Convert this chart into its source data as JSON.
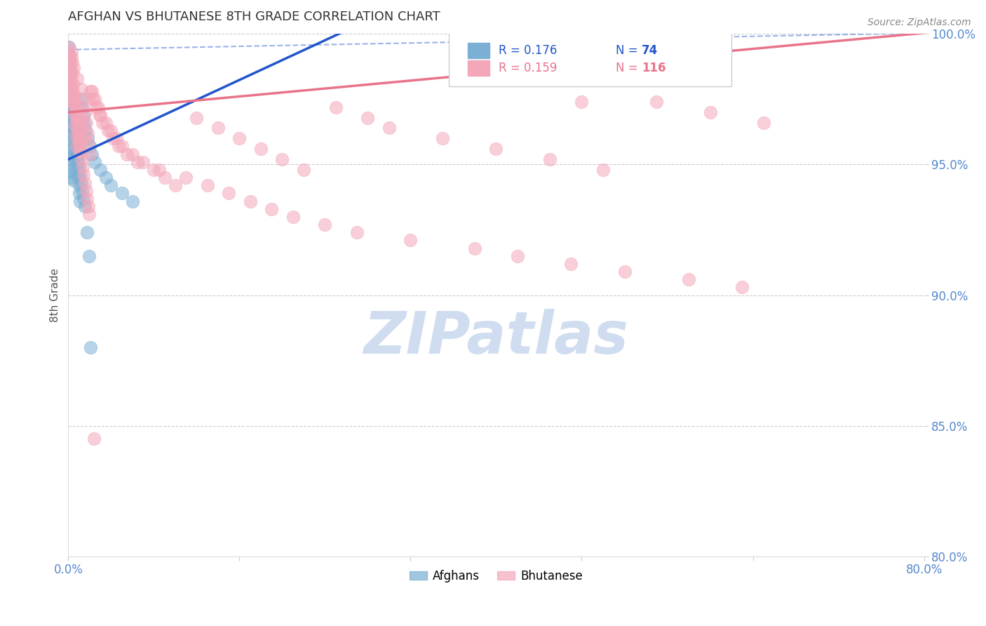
{
  "title": "AFGHAN VS BHUTANESE 8TH GRADE CORRELATION CHART",
  "source": "Source: ZipAtlas.com",
  "xlim": [
    0.0,
    80.0
  ],
  "ylim": [
    80.0,
    100.0
  ],
  "ylabel": "8th Grade",
  "afghan_color": "#7bafd4",
  "bhutanese_color": "#f4a7b9",
  "afghan_line_color": "#2255cc",
  "bhutanese_line_color": "#e8738a",
  "title_color": "#333333",
  "source_color": "#888888",
  "axis_label_color": "#555555",
  "tick_color": "#5588cc",
  "grid_color": "#cccccc",
  "watermark_color": "#d0ddf0",
  "afghan_slope": 0.19,
  "afghan_intercept": 95.2,
  "bhutanese_slope": 0.038,
  "bhutanese_intercept": 97.0,
  "dashed_slope": 0.008,
  "dashed_intercept": 99.4,
  "afghan_points_x": [
    0.05,
    0.05,
    0.08,
    0.08,
    0.1,
    0.1,
    0.12,
    0.12,
    0.15,
    0.15,
    0.18,
    0.18,
    0.2,
    0.2,
    0.22,
    0.25,
    0.25,
    0.28,
    0.3,
    0.3,
    0.35,
    0.35,
    0.4,
    0.4,
    0.45,
    0.5,
    0.5,
    0.55,
    0.6,
    0.65,
    0.7,
    0.75,
    0.8,
    0.85,
    0.9,
    0.95,
    1.0,
    1.05,
    1.1,
    1.2,
    1.3,
    1.4,
    1.5,
    1.6,
    1.8,
    2.0,
    2.2,
    2.5,
    3.0,
    3.5,
    4.0,
    5.0,
    6.0,
    0.06,
    0.09,
    0.13,
    0.16,
    0.23,
    0.32,
    0.42,
    0.52,
    0.62,
    0.72,
    0.82,
    0.92,
    1.02,
    1.12,
    1.22,
    1.32,
    1.42,
    1.52,
    1.72,
    1.92,
    2.1
  ],
  "afghan_points_y": [
    99.5,
    99.2,
    99.0,
    98.8,
    98.5,
    97.8,
    97.5,
    97.2,
    96.8,
    96.5,
    96.2,
    95.8,
    95.5,
    95.2,
    94.8,
    94.5,
    97.0,
    96.8,
    96.5,
    96.2,
    95.9,
    95.6,
    95.3,
    95.0,
    94.7,
    94.4,
    97.2,
    96.9,
    96.6,
    96.3,
    96.0,
    95.7,
    95.4,
    95.1,
    94.8,
    94.5,
    94.2,
    93.9,
    93.6,
    97.5,
    97.2,
    96.9,
    96.6,
    96.3,
    96.0,
    95.7,
    95.4,
    95.1,
    94.8,
    94.5,
    94.2,
    93.9,
    93.6,
    98.5,
    98.2,
    97.9,
    97.6,
    97.3,
    97.0,
    96.7,
    96.4,
    96.1,
    95.8,
    95.5,
    95.2,
    94.9,
    94.6,
    94.3,
    94.0,
    93.7,
    93.4,
    92.4,
    91.5,
    88.0
  ],
  "bhutanese_points_x": [
    0.05,
    0.08,
    0.1,
    0.12,
    0.15,
    0.18,
    0.2,
    0.22,
    0.25,
    0.28,
    0.3,
    0.35,
    0.4,
    0.45,
    0.5,
    0.55,
    0.6,
    0.65,
    0.7,
    0.75,
    0.8,
    0.85,
    0.9,
    0.95,
    1.0,
    1.1,
    1.2,
    1.3,
    1.4,
    1.5,
    1.6,
    1.7,
    1.8,
    1.9,
    2.0,
    2.2,
    2.5,
    2.8,
    3.0,
    3.5,
    4.0,
    4.5,
    5.0,
    6.0,
    7.0,
    8.0,
    9.0,
    10.0,
    12.0,
    14.0,
    16.0,
    18.0,
    20.0,
    22.0,
    25.0,
    28.0,
    30.0,
    35.0,
    40.0,
    45.0,
    50.0,
    55.0,
    60.0,
    65.0,
    0.15,
    0.25,
    0.35,
    0.45,
    0.55,
    0.65,
    0.75,
    0.85,
    0.95,
    1.05,
    1.15,
    1.25,
    1.35,
    1.45,
    1.55,
    1.65,
    1.75,
    1.85,
    1.95,
    2.1,
    2.3,
    2.6,
    2.9,
    3.2,
    3.7,
    4.2,
    4.7,
    5.5,
    6.5,
    8.5,
    11.0,
    13.0,
    15.0,
    17.0,
    19.0,
    21.0,
    24.0,
    27.0,
    32.0,
    38.0,
    42.0,
    47.0,
    48.0,
    52.0,
    58.0,
    63.0,
    0.3,
    0.5,
    0.8,
    1.2,
    1.8,
    2.4
  ],
  "bhutanese_points_y": [
    99.5,
    99.2,
    99.0,
    98.8,
    98.6,
    98.3,
    98.0,
    97.8,
    97.6,
    97.4,
    99.3,
    98.9,
    98.5,
    98.1,
    97.7,
    97.3,
    96.9,
    96.5,
    96.1,
    95.7,
    97.5,
    97.1,
    96.7,
    96.3,
    95.9,
    95.5,
    97.2,
    96.8,
    96.4,
    96.0,
    97.0,
    96.6,
    96.2,
    95.8,
    95.4,
    97.8,
    97.5,
    97.2,
    96.9,
    96.6,
    96.3,
    96.0,
    95.7,
    95.4,
    95.1,
    94.8,
    94.5,
    94.2,
    96.8,
    96.4,
    96.0,
    95.6,
    95.2,
    94.8,
    97.2,
    96.8,
    96.4,
    96.0,
    95.6,
    95.2,
    94.8,
    97.4,
    97.0,
    96.6,
    98.5,
    98.2,
    97.9,
    97.6,
    97.3,
    97.0,
    96.7,
    96.4,
    96.1,
    95.8,
    95.5,
    95.2,
    94.9,
    94.6,
    94.3,
    94.0,
    93.7,
    93.4,
    93.1,
    97.8,
    97.5,
    97.2,
    96.9,
    96.6,
    96.3,
    96.0,
    95.7,
    95.4,
    95.1,
    94.8,
    94.5,
    94.2,
    93.9,
    93.6,
    93.3,
    93.0,
    92.7,
    92.4,
    92.1,
    91.8,
    91.5,
    91.2,
    97.4,
    90.9,
    90.6,
    90.3,
    99.1,
    98.7,
    98.3,
    97.9,
    97.5,
    84.5
  ]
}
